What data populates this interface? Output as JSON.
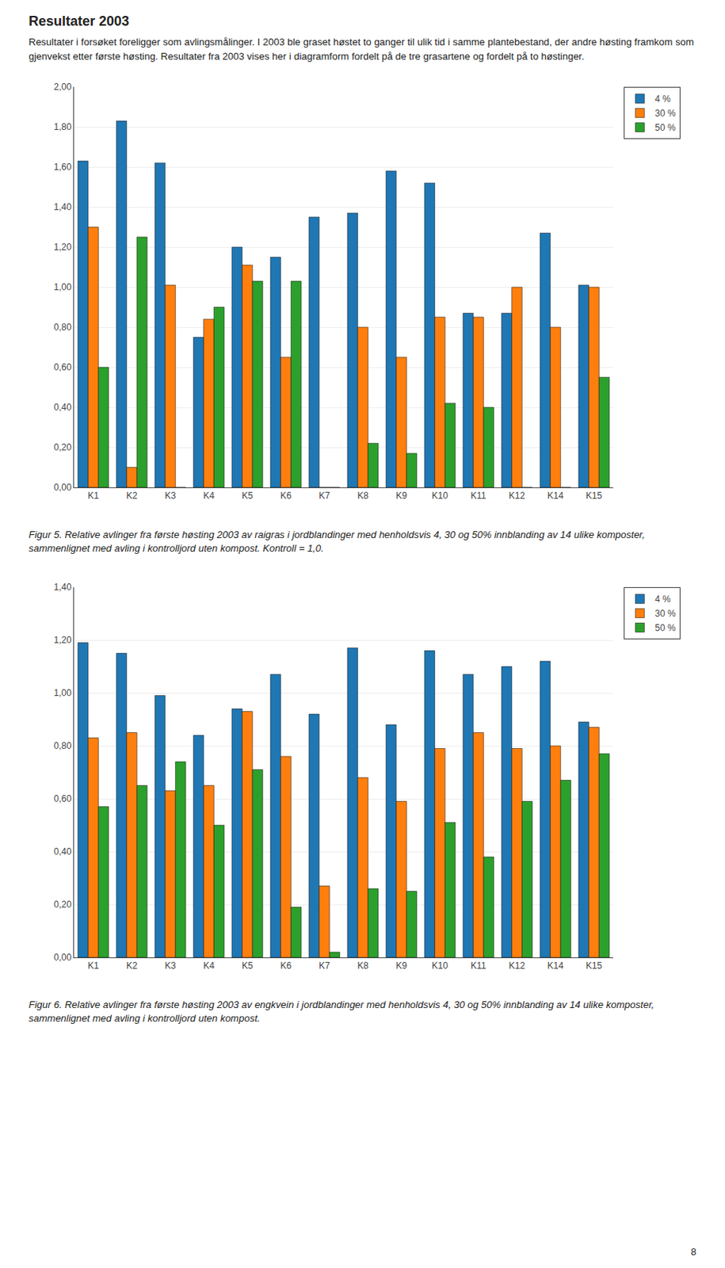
{
  "chart_data": [
    {
      "type": "bar",
      "title": "Resultater 2003",
      "subtitle": "Resultater i forsøket foreligger som avlingsmålinger. I 2003 ble graset høstet to ganger til ulik tid i samme plantebestand, der andre høsting framkom som gjenvekst etter første høsting. Resultater fra 2003 vises her i diagramform fordelt på de tre grasartene og fordelt på to høstinger.",
      "categories": [
        "K1",
        "K2",
        "K3",
        "K4",
        "K5",
        "K6",
        "K7",
        "K8",
        "K9",
        "K10",
        "K11",
        "K12",
        "K14",
        "K15"
      ],
      "series": [
        {
          "name": "4 %",
          "values": [
            1.63,
            1.83,
            1.62,
            0.75,
            1.2,
            1.15,
            1.35,
            1.37,
            1.58,
            1.52,
            0.87,
            0.87,
            1.27,
            1.01
          ]
        },
        {
          "name": "30 %",
          "values": [
            1.3,
            0.1,
            1.01,
            0.84,
            1.11,
            0.65,
            0.0,
            0.8,
            0.65,
            0.85,
            0.85,
            1.0,
            0.8,
            1.0
          ]
        },
        {
          "name": "50 %",
          "values": [
            0.6,
            1.25,
            0.0,
            0.9,
            1.03,
            1.03,
            0.0,
            0.22,
            0.17,
            0.42,
            0.4,
            0.0,
            0.0,
            0.55
          ]
        }
      ],
      "ylim": [
        0.0,
        2.0
      ],
      "yticks": [
        {
          "value": 0,
          "label": "0,00"
        },
        {
          "value": 0.2,
          "label": "0,20"
        },
        {
          "value": 0.4,
          "label": "0,40"
        },
        {
          "value": 0.6,
          "label": "0,60"
        },
        {
          "value": 0.8,
          "label": "0,80"
        },
        {
          "value": 1.0,
          "label": "1,00"
        },
        {
          "value": 1.2,
          "label": "1,20"
        },
        {
          "value": 1.4,
          "label": "1,40"
        },
        {
          "value": 1.6,
          "label": "1,60"
        },
        {
          "value": 1.8,
          "label": "1,80"
        },
        {
          "value": 2.0,
          "label": "2,00"
        }
      ],
      "grid": true,
      "legend": "upper right",
      "annotations": [
        "Figur 5. Relative avlinger fra første høsting 2003 av raigras i jordblandinger med henholdsvis 4, 30 og 50% innblanding av 14 ulike komposter, sammenlignet med avling i kontrolljord uten kompost. Kontroll = 1,0."
      ]
    },
    {
      "type": "bar",
      "categories": [
        "K1",
        "K2",
        "K3",
        "K4",
        "K5",
        "K6",
        "K7",
        "K8",
        "K9",
        "K10",
        "K11",
        "K12",
        "K14",
        "K15"
      ],
      "series": [
        {
          "name": "4 %",
          "values": [
            1.19,
            1.15,
            0.99,
            0.84,
            0.94,
            1.07,
            0.92,
            1.17,
            0.88,
            1.16,
            1.07,
            1.1,
            1.12,
            0.89
          ]
        },
        {
          "name": "30 %",
          "values": [
            0.83,
            0.85,
            0.63,
            0.65,
            0.93,
            0.76,
            0.27,
            0.68,
            0.59,
            0.79,
            0.85,
            0.79,
            0.8,
            0.87
          ]
        },
        {
          "name": "50 %",
          "values": [
            0.57,
            0.65,
            0.74,
            0.5,
            0.71,
            0.19,
            0.02,
            0.26,
            0.25,
            0.51,
            0.38,
            0.59,
            0.67,
            0.77
          ]
        }
      ],
      "ylim": [
        0.0,
        1.4
      ],
      "yticks": [
        {
          "value": 0,
          "label": "0,00"
        },
        {
          "value": 0.2,
          "label": "0,20"
        },
        {
          "value": 0.4,
          "label": "0,40"
        },
        {
          "value": 0.6,
          "label": "0,60"
        },
        {
          "value": 0.8,
          "label": "0,80"
        },
        {
          "value": 1.0,
          "label": "1,00"
        },
        {
          "value": 1.2,
          "label": "1,20"
        },
        {
          "value": 1.4,
          "label": "1,40"
        }
      ],
      "grid": true,
      "legend": "upper right",
      "annotations": [
        "Figur 6. Relative avlinger fra første høsting 2003 av engkvein i jordblandinger med henholdsvis 4, 30 og 50% innblanding av 14 ulike komposter, sammenlignet med avling i kontrolljord uten kompost.",
        "8"
      ]
    }
  ]
}
